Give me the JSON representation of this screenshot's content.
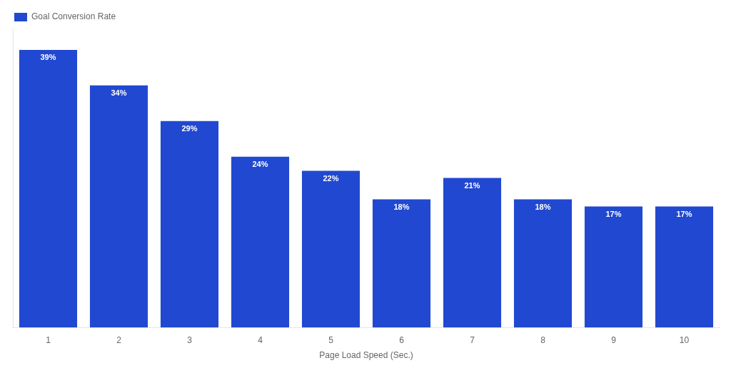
{
  "chart_data": {
    "type": "bar",
    "xlabel": "Page Load Speed (Sec.)",
    "categories": [
      "1",
      "2",
      "3",
      "4",
      "5",
      "6",
      "7",
      "8",
      "9",
      "10"
    ],
    "series": [
      {
        "name": "Goal Conversion Rate",
        "color": "#2148D0",
        "values": [
          39,
          34,
          29,
          24,
          22,
          18,
          21,
          18,
          17,
          17
        ],
        "value_labels": [
          "39%",
          "34%",
          "29%",
          "24%",
          "22%",
          "18%",
          "21%",
          "18%",
          "17%",
          "17%"
        ]
      }
    ],
    "ylim": [
      0,
      42
    ],
    "tick_labels": "x",
    "grid": false,
    "legend": "upper left",
    "data_labels": true
  }
}
